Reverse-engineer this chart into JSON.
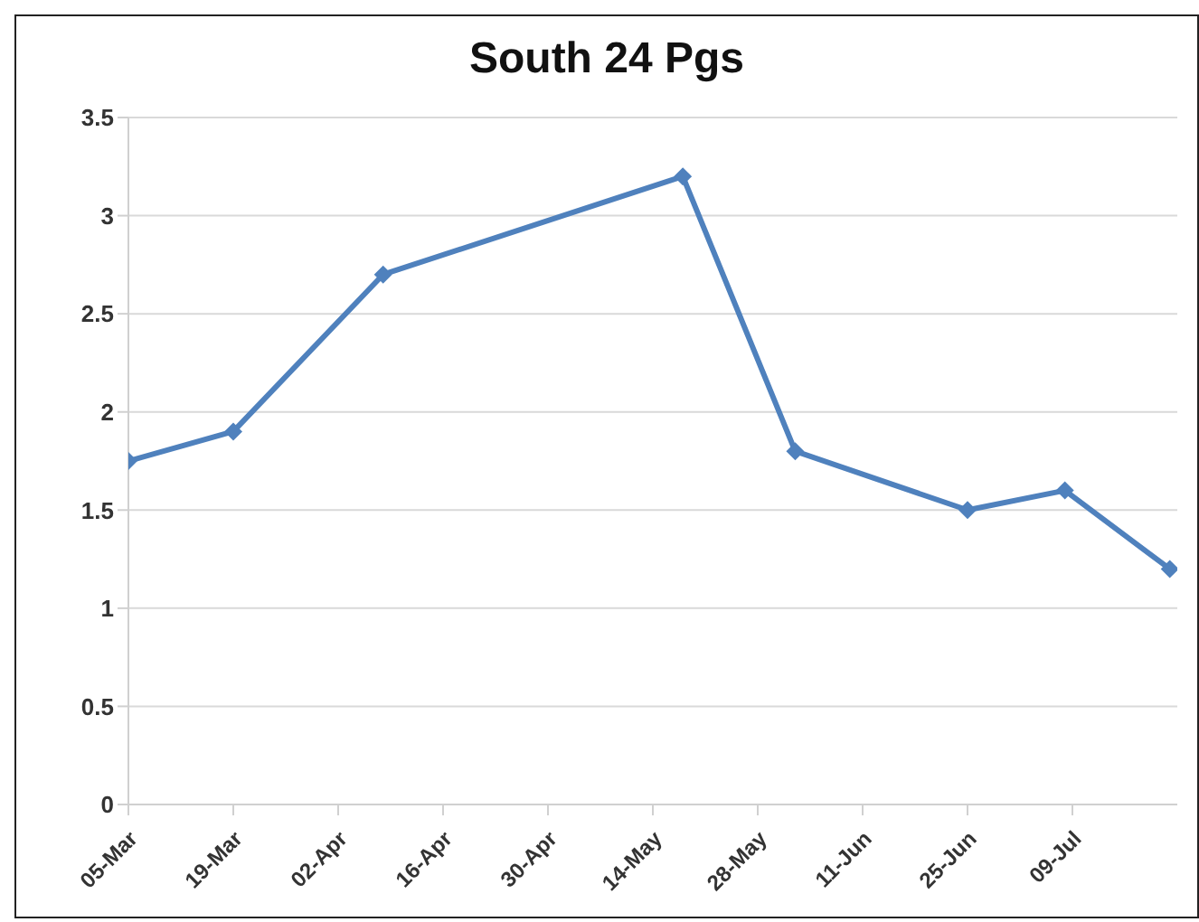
{
  "chart_data": {
    "type": "line",
    "title": "South 24 Pgs",
    "x": [
      "--03-05",
      "--03-19",
      "--04-08",
      "--05-18",
      "--06-02",
      "--06-25",
      "--07-08",
      "--07-22"
    ],
    "series": [
      {
        "color": "#4f81bd",
        "values": [
          1.75,
          1.9,
          2.7,
          3.2,
          1.8,
          1.5,
          1.6,
          1.2
        ]
      }
    ],
    "xlim": [
      "--03-05",
      "--07-23"
    ],
    "xticks": [
      {
        "value": "--03-05",
        "label": "05-Mar"
      },
      {
        "value": "--03-19",
        "label": "19-Mar"
      },
      {
        "value": "--04-02",
        "label": "02-Apr"
      },
      {
        "value": "--04-16",
        "label": "16-Apr"
      },
      {
        "value": "--04-30",
        "label": "30-Apr"
      },
      {
        "value": "--05-14",
        "label": "14-May"
      },
      {
        "value": "--05-28",
        "label": "28-May"
      },
      {
        "value": "--06-11",
        "label": "11-Jun"
      },
      {
        "value": "--06-25",
        "label": "25-Jun"
      },
      {
        "value": "--07-09",
        "label": "09-Jul"
      }
    ],
    "ylim": [
      0,
      3.5
    ],
    "yticks": [
      0,
      0.5,
      1,
      1.5,
      2,
      2.5,
      3,
      3.5
    ],
    "grid": "y",
    "marker": "diamond",
    "line_style": "solid"
  }
}
